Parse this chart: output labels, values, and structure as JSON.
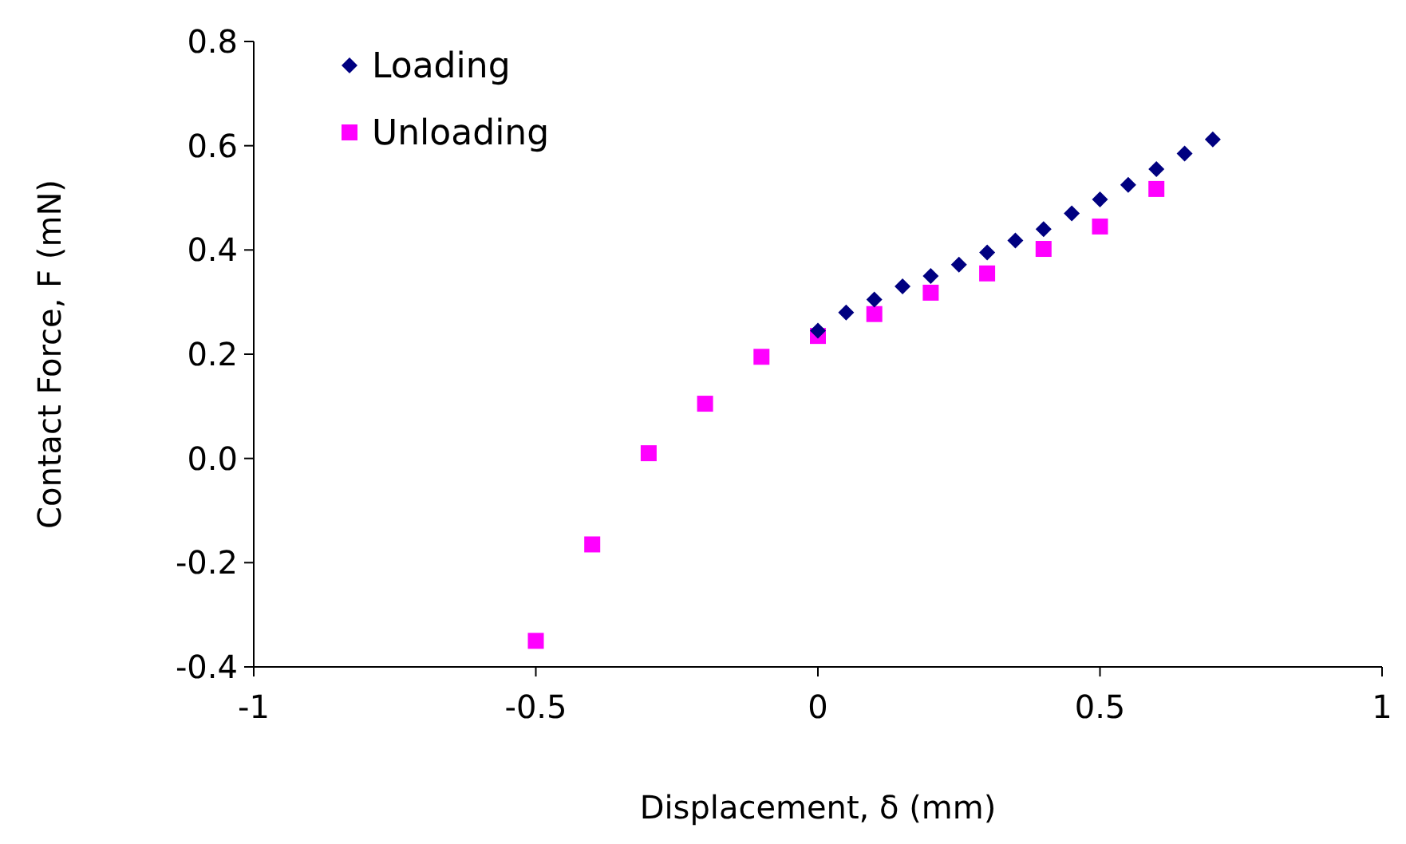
{
  "chart_data": {
    "type": "scatter",
    "xlabel": "Displacement, δ (mm)",
    "ylabel": "Contact Force, F (mN)",
    "xlim": [
      -1,
      1
    ],
    "xticks": [
      -1,
      -0.5,
      0,
      0.5,
      1
    ],
    "ylim": [
      -0.4,
      0.8
    ],
    "yticks": [
      -0.4,
      -0.2,
      {
        "value": 0,
        "label": "0.0"
      },
      0.2,
      0.4,
      0.6,
      0.8
    ],
    "grid": false,
    "legend": "top left",
    "series": [
      {
        "name": "Loading",
        "color": "#000080",
        "marker": "diamond",
        "x": [
          0,
          0.05,
          0.1,
          0.15,
          0.2,
          0.25,
          0.3,
          0.35,
          0.4,
          0.45,
          0.5,
          0.55,
          0.6,
          0.65,
          0.7
        ],
        "values": [
          0.245,
          0.28,
          0.305,
          0.33,
          0.35,
          0.372,
          0.395,
          0.418,
          0.44,
          0.47,
          0.497,
          0.525,
          0.555,
          0.585,
          0.612
        ]
      },
      {
        "name": "Unloading",
        "color": "#ff00ff",
        "marker": "square",
        "x": [
          -0.5,
          -0.4,
          -0.3,
          -0.2,
          -0.1,
          0,
          0.1,
          0.2,
          0.3,
          0.4,
          0.5,
          0.6
        ],
        "values": [
          -0.35,
          -0.165,
          0.01,
          0.105,
          0.195,
          0.235,
          0.277,
          0.318,
          0.355,
          0.402,
          0.445,
          0.517
        ]
      }
    ]
  }
}
